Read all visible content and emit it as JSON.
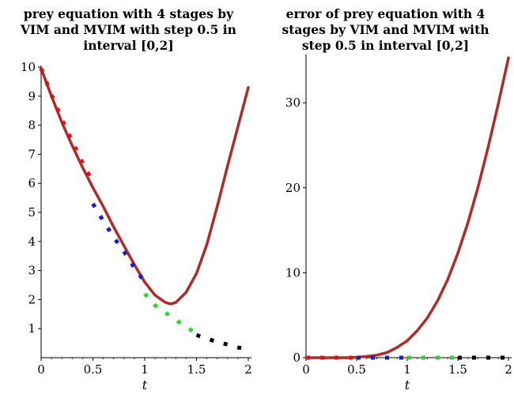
{
  "chart_data": [
    {
      "type": "line",
      "title_lines": [
        "prey equation with 4 stages by",
        "VIM and MVIM with step 0.5 in",
        "interval [0,2]"
      ],
      "xlabel": "t",
      "ylabel": "",
      "xlim": [
        0,
        2
      ],
      "ylim": [
        0,
        10
      ],
      "xticks": [
        0,
        0.5,
        1,
        1.5,
        2
      ],
      "xtick_labels": [
        "0",
        "0.5",
        "1",
        "1.5",
        "2"
      ],
      "yticks": [
        1,
        2,
        3,
        4,
        5,
        6,
        7,
        8,
        9,
        10
      ],
      "ytick_labels": [
        "1",
        "2",
        "3",
        "4",
        "5",
        "6",
        "7",
        "8",
        "9",
        "10"
      ],
      "grid": false,
      "series": [
        {
          "style": "solid",
          "color": "#b02a2a",
          "x": [
            0,
            0.1,
            0.2,
            0.3,
            0.4,
            0.5,
            0.6,
            0.7,
            0.8,
            0.9,
            1.0,
            1.1,
            1.2,
            1.25,
            1.3,
            1.4,
            1.5,
            1.6,
            1.7,
            1.8,
            1.9,
            2.0
          ],
          "y": [
            9.95,
            9.0,
            8.1,
            7.3,
            6.55,
            5.85,
            5.2,
            4.5,
            3.85,
            3.2,
            2.6,
            2.15,
            1.9,
            1.85,
            1.9,
            2.25,
            2.9,
            3.9,
            5.2,
            6.6,
            7.95,
            9.3
          ]
        },
        {
          "style": "dotted",
          "color": "#e01010",
          "x": [
            0,
            0.1,
            0.2,
            0.3,
            0.4,
            0.5
          ],
          "y": [
            9.95,
            9.05,
            8.2,
            7.45,
            6.7,
            6.05
          ]
        },
        {
          "style": "dotted",
          "color": "#1a1acc",
          "x": [
            0.5,
            0.6,
            0.7,
            0.8,
            0.9,
            1.0
          ],
          "y": [
            5.3,
            4.7,
            4.15,
            3.65,
            3.1,
            2.6
          ]
        },
        {
          "style": "dotted",
          "color": "#22dd22",
          "x": [
            1.0,
            1.1,
            1.2,
            1.3,
            1.4,
            1.5
          ],
          "y": [
            2.2,
            1.8,
            1.55,
            1.3,
            1.05,
            0.85
          ]
        },
        {
          "style": "dotted",
          "color": "#000000",
          "x": [
            1.5,
            1.6,
            1.7,
            1.8,
            1.9,
            2.0
          ],
          "y": [
            0.78,
            0.65,
            0.55,
            0.45,
            0.35,
            0.28
          ]
        }
      ]
    },
    {
      "type": "line",
      "title_lines": [
        "error of prey equation with 4",
        "stages by VIM and MVIM with",
        "step 0.5 in interval [0,2]"
      ],
      "xlabel": "t",
      "ylabel": "",
      "xlim": [
        0,
        2
      ],
      "ylim": [
        0,
        35.5
      ],
      "xticks": [
        0,
        0.5,
        1,
        1.5,
        2
      ],
      "xtick_labels": [
        "0",
        "0.5",
        "1",
        "1.5",
        "2"
      ],
      "yticks": [
        0,
        10,
        20,
        30
      ],
      "ytick_labels": [
        "0",
        "10",
        "20",
        "30"
      ],
      "grid": false,
      "series": [
        {
          "style": "solid",
          "color": "#b02a2a",
          "x": [
            0,
            0.2,
            0.4,
            0.5,
            0.6,
            0.7,
            0.8,
            0.9,
            1.0,
            1.1,
            1.2,
            1.3,
            1.4,
            1.5,
            1.6,
            1.7,
            1.8,
            1.9,
            2.0
          ],
          "y": [
            0,
            0,
            0,
            0.05,
            0.15,
            0.3,
            0.6,
            1.2,
            2.0,
            3.2,
            4.7,
            6.7,
            9.2,
            12.3,
            15.9,
            20.1,
            24.8,
            29.9,
            35.3
          ]
        },
        {
          "style": "dotted",
          "color": "#e01010",
          "x": [
            0,
            0.1,
            0.2,
            0.3,
            0.4,
            0.5
          ],
          "y": [
            0,
            0,
            0,
            0,
            0,
            0
          ]
        },
        {
          "style": "dotted",
          "color": "#1a1acc",
          "x": [
            0.5,
            0.6,
            0.7,
            0.8,
            0.9,
            1.0
          ],
          "y": [
            0,
            0,
            0,
            0,
            0,
            0
          ]
        },
        {
          "style": "dotted",
          "color": "#22dd22",
          "x": [
            1.0,
            1.1,
            1.2,
            1.3,
            1.4,
            1.5
          ],
          "y": [
            0,
            0,
            0,
            0,
            0,
            0
          ]
        },
        {
          "style": "dotted",
          "color": "#000000",
          "x": [
            1.5,
            1.6,
            1.7,
            1.8,
            1.9,
            2.0
          ],
          "y": [
            0,
            0,
            0,
            0,
            0,
            0
          ]
        }
      ]
    }
  ]
}
